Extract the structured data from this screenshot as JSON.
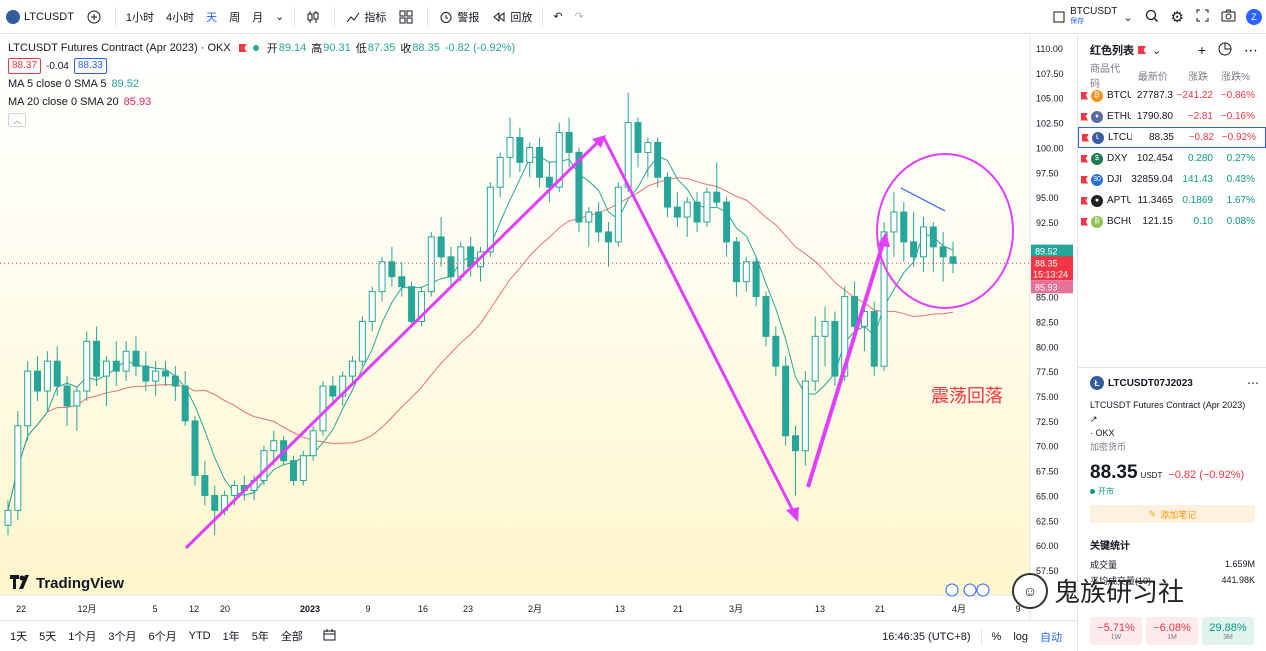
{
  "toolbar": {
    "symbol": "LTCUSDT",
    "intervals": [
      "1小时",
      "4小时",
      "天",
      "周",
      "月"
    ],
    "active_interval": "天",
    "indicators_label": "指标",
    "alert_label": "警报",
    "replay_label": "回放",
    "right_symbol": "BTCUSDT",
    "right_symbol_sub": "保存",
    "avatar": "Z"
  },
  "legend": {
    "title": "LTCUSDT Futures Contract (Apr 2023) · OKX",
    "open_label": "开",
    "open": "89.14",
    "high_label": "高",
    "high": "90.31",
    "low_label": "低",
    "low": "87.35",
    "close_label": "收",
    "close": "88.35",
    "change": "-0.82 (-0.92%)",
    "bid": "88.37",
    "spread": "-0.04",
    "ask": "88.33",
    "ma5_label": "MA 5 close 0 SMA 5",
    "ma5_value": "89.52",
    "ma20_label": "MA 20 close 0 SMA 20",
    "ma20_value": "85.93"
  },
  "chart_data": {
    "type": "candlestick",
    "y_ticks": [
      "110.00",
      "107.50",
      "105.00",
      "102.50",
      "100.00",
      "97.50",
      "95.00",
      "92.50",
      "90.00",
      "87.50",
      "85.00",
      "82.50",
      "80.00",
      "77.50",
      "75.00",
      "72.50",
      "70.00",
      "67.50",
      "65.00",
      "62.50",
      "60.00",
      "57.50"
    ],
    "x_ticks": [
      "22",
      "12月",
      "5",
      "12",
      "20",
      "2023",
      "9",
      "16",
      "23",
      "2月",
      "13",
      "21",
      "3月",
      "13",
      "21",
      "4月",
      "9"
    ],
    "last_price_label": "88.35",
    "countdown": "15:13:24",
    "ma5_price_label": "89.52",
    "ma20_price_label": "85.93",
    "annotation": "震荡回落",
    "candles": [
      [
        62.0,
        64.5,
        61.0,
        63.5
      ],
      [
        63.5,
        73.5,
        62.5,
        72.0
      ],
      [
        72.0,
        78.5,
        70.5,
        77.5
      ],
      [
        77.5,
        79.0,
        74.5,
        75.5
      ],
      [
        75.5,
        79.5,
        73.5,
        78.5
      ],
      [
        78.5,
        80.0,
        75.0,
        76.0
      ],
      [
        76.0,
        77.0,
        72.0,
        74.0
      ],
      [
        74.0,
        76.0,
        71.5,
        75.5
      ],
      [
        75.5,
        81.5,
        74.5,
        80.5
      ],
      [
        80.5,
        82.0,
        76.0,
        77.0
      ],
      [
        77.0,
        79.0,
        74.0,
        78.5
      ],
      [
        78.5,
        80.5,
        76.0,
        77.5
      ],
      [
        77.5,
        80.5,
        76.5,
        79.5
      ],
      [
        79.5,
        81.0,
        77.0,
        78.0
      ],
      [
        78.0,
        79.5,
        75.5,
        76.5
      ],
      [
        76.5,
        78.5,
        75.0,
        77.5
      ],
      [
        77.5,
        78.5,
        76.0,
        77.0
      ],
      [
        77.0,
        78.0,
        74.5,
        76.0
      ],
      [
        76.0,
        77.5,
        72.0,
        72.5
      ],
      [
        72.5,
        73.0,
        66.0,
        67.0
      ],
      [
        67.0,
        68.5,
        64.0,
        65.0
      ],
      [
        65.0,
        66.0,
        61.0,
        63.5
      ],
      [
        63.5,
        65.5,
        63.0,
        65.0
      ],
      [
        65.0,
        66.5,
        64.0,
        66.0
      ],
      [
        66.0,
        67.0,
        64.5,
        65.5
      ],
      [
        65.5,
        67.0,
        64.5,
        66.5
      ],
      [
        66.5,
        70.0,
        66.0,
        69.5
      ],
      [
        69.5,
        71.5,
        68.0,
        70.5
      ],
      [
        70.5,
        71.0,
        68.0,
        68.5
      ],
      [
        68.5,
        69.0,
        66.0,
        66.5
      ],
      [
        66.5,
        69.5,
        66.0,
        69.0
      ],
      [
        69.0,
        72.0,
        68.5,
        71.5
      ],
      [
        71.5,
        76.5,
        71.0,
        76.0
      ],
      [
        76.0,
        77.0,
        74.0,
        75.0
      ],
      [
        75.0,
        77.5,
        74.0,
        77.0
      ],
      [
        77.0,
        79.0,
        76.0,
        78.5
      ],
      [
        78.5,
        83.0,
        78.0,
        82.5
      ],
      [
        82.5,
        86.0,
        81.5,
        85.5
      ],
      [
        85.5,
        89.0,
        84.5,
        88.5
      ],
      [
        88.5,
        90.0,
        86.0,
        87.0
      ],
      [
        87.0,
        88.5,
        85.0,
        86.0
      ],
      [
        86.0,
        86.5,
        82.0,
        82.5
      ],
      [
        82.5,
        86.0,
        82.0,
        85.5
      ],
      [
        85.5,
        91.5,
        85.0,
        91.0
      ],
      [
        91.0,
        93.0,
        88.0,
        89.0
      ],
      [
        89.0,
        90.0,
        86.0,
        87.0
      ],
      [
        87.0,
        90.5,
        86.5,
        90.0
      ],
      [
        90.0,
        91.0,
        87.0,
        88.0
      ],
      [
        88.0,
        90.0,
        86.5,
        89.5
      ],
      [
        89.5,
        96.5,
        89.0,
        96.0
      ],
      [
        96.0,
        99.5,
        95.0,
        99.0
      ],
      [
        99.0,
        103.0,
        97.0,
        101.0
      ],
      [
        101.0,
        102.0,
        97.5,
        98.5
      ],
      [
        98.5,
        100.5,
        97.0,
        100.0
      ],
      [
        100.0,
        101.0,
        96.0,
        97.0
      ],
      [
        97.0,
        98.5,
        94.5,
        96.0
      ],
      [
        96.0,
        102.5,
        95.5,
        101.5
      ],
      [
        101.5,
        103.0,
        98.0,
        99.5
      ],
      [
        99.5,
        100.0,
        91.5,
        92.5
      ],
      [
        92.5,
        94.0,
        90.0,
        93.5
      ],
      [
        93.5,
        94.5,
        90.5,
        91.5
      ],
      [
        91.5,
        92.5,
        88.0,
        90.5
      ],
      [
        90.5,
        96.5,
        90.0,
        96.0
      ],
      [
        96.0,
        105.5,
        95.5,
        102.5
      ],
      [
        102.5,
        103.0,
        98.0,
        99.5
      ],
      [
        99.5,
        101.0,
        97.0,
        100.5
      ],
      [
        100.5,
        101.0,
        96.0,
        97.0
      ],
      [
        97.0,
        97.5,
        93.0,
        94.0
      ],
      [
        94.0,
        95.5,
        92.0,
        93.0
      ],
      [
        93.0,
        95.0,
        91.0,
        94.5
      ],
      [
        94.5,
        95.5,
        91.5,
        92.5
      ],
      [
        92.5,
        96.0,
        92.0,
        95.5
      ],
      [
        95.5,
        98.5,
        94.0,
        94.5
      ],
      [
        94.5,
        95.0,
        89.0,
        90.5
      ],
      [
        90.5,
        91.0,
        85.0,
        86.5
      ],
      [
        86.5,
        89.0,
        85.5,
        88.5
      ],
      [
        88.5,
        89.0,
        84.0,
        85.0
      ],
      [
        85.0,
        85.5,
        80.0,
        81.0
      ],
      [
        81.0,
        82.0,
        77.0,
        78.0
      ],
      [
        78.0,
        79.0,
        70.0,
        71.0
      ],
      [
        71.0,
        72.0,
        65.0,
        69.5
      ],
      [
        69.5,
        77.5,
        68.0,
        76.5
      ],
      [
        76.5,
        83.0,
        75.5,
        81.0
      ],
      [
        81.0,
        84.0,
        78.0,
        82.5
      ],
      [
        82.5,
        83.5,
        76.0,
        77.0
      ],
      [
        77.0,
        86.0,
        76.5,
        85.0
      ],
      [
        85.0,
        86.5,
        81.5,
        82.0
      ],
      [
        82.0,
        84.0,
        79.5,
        83.5
      ],
      [
        83.5,
        84.5,
        77.0,
        78.0
      ],
      [
        78.0,
        92.5,
        77.5,
        91.5
      ],
      [
        91.5,
        95.5,
        89.0,
        93.5
      ],
      [
        93.5,
        94.5,
        88.5,
        90.5
      ],
      [
        90.5,
        93.5,
        88.0,
        89.0
      ],
      [
        89.0,
        93.0,
        87.5,
        92.0
      ],
      [
        92.0,
        92.5,
        87.5,
        90.0
      ],
      [
        90.0,
        91.5,
        86.5,
        89.0
      ],
      [
        89.0,
        90.5,
        87.35,
        88.35
      ]
    ]
  },
  "watchlist": {
    "title": "红色列表",
    "col_symbol": "商品代码",
    "col_last": "最新价",
    "col_chg": "涨跌",
    "col_pct": "涨跌%",
    "rows": [
      {
        "sym": "BTCUSDT",
        "last": "27787.3",
        "chg": "−241.22",
        "pct": "−0.86%",
        "dir": "neg",
        "icon_color": "#f7931a",
        "glyph": "₿"
      },
      {
        "sym": "ETHUSDT",
        "last": "1790.80",
        "chg": "−2.81",
        "pct": "−0.16%",
        "dir": "neg",
        "icon_color": "#5b6aa0",
        "glyph": "♦"
      },
      {
        "sym": "LTCUSDT",
        "last": "88.35",
        "chg": "−0.82",
        "pct": "−0.92%",
        "dir": "neg",
        "icon_color": "#345d9d",
        "glyph": "Ł"
      },
      {
        "sym": "DXY",
        "last": "102.454",
        "chg": "0.280",
        "pct": "0.27%",
        "dir": "pos",
        "icon_color": "#1e7d4f",
        "glyph": "$"
      },
      {
        "sym": "DJI",
        "last": "32859.04",
        "chg": "141.43",
        "pct": "0.43%",
        "dir": "pos",
        "icon_color": "#2a6fdb",
        "glyph": "30"
      },
      {
        "sym": "APTUSDT",
        "last": "11.3465",
        "chg": "0.1869",
        "pct": "1.67%",
        "dir": "pos",
        "icon_color": "#222222",
        "glyph": "●"
      },
      {
        "sym": "BCHUSDT",
        "last": "121.15",
        "chg": "0.10",
        "pct": "0.08%",
        "dir": "pos",
        "icon_color": "#8dc351",
        "glyph": "₿"
      }
    ]
  },
  "details": {
    "symbol": "LTCUSDT07J2023",
    "name": "LTCUSDT Futures Contract (Apr 2023)",
    "exchange": "· OKX",
    "category": "加密货币",
    "price": "88.35",
    "unit": "USDT",
    "change": "−0.82 (−0.92%)",
    "market": "开市",
    "note_btn": "添加笔记",
    "stats_title": "关键统计",
    "volume_label": "成交量",
    "volume": "1.659M",
    "avg_volume_label": "平均成交量(10)",
    "avg_volume": "441.98K",
    "perf": [
      {
        "v": "−5.71%",
        "l": "1W",
        "dir": "n"
      },
      {
        "v": "−6.08%",
        "l": "1M",
        "dir": "n"
      },
      {
        "v": "29.88%",
        "l": "3M",
        "dir": "p"
      }
    ]
  },
  "bottom": {
    "ranges": [
      "1天",
      "5天",
      "1个月",
      "3个月",
      "6个月",
      "YTD",
      "1年",
      "5年",
      "全部"
    ],
    "time": "16:46:35 (UTC+8)",
    "pct": "%",
    "log": "log",
    "auto": "自动"
  },
  "brand": "TradingView",
  "watermark": "鬼族研习社"
}
